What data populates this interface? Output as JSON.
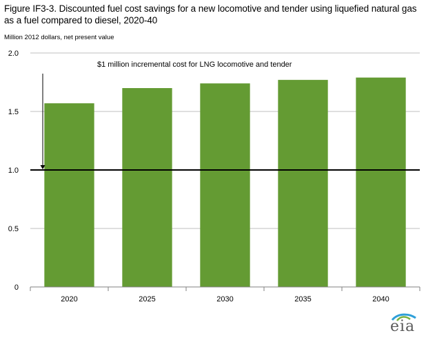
{
  "title": "Figure IF3-3. Discounted fuel cost savings for a  new locomotive and tender using liquefied natural gas as a fuel compared to diesel, 2020-40",
  "subtitle": "Million 2012 dollars,  net present value",
  "logo_text": "eia",
  "colors": {
    "bar": "#649B33",
    "grid": "#BFBFBF",
    "reference_line": "#000000",
    "logo_swoosh": "#2E9FD8",
    "logo_leaf": "#7BB241"
  },
  "chart_data": {
    "type": "bar",
    "categories": [
      "2020",
      "2025",
      "2030",
      "2035",
      "2040"
    ],
    "values": [
      1.57,
      1.7,
      1.74,
      1.77,
      1.79
    ],
    "ylim": [
      0,
      2.0
    ],
    "yticks": [
      0,
      0.5,
      1.0,
      1.5,
      2.0
    ],
    "ytick_labels": [
      "0",
      "0.5",
      "1.0",
      "1.5",
      "2.0"
    ],
    "grid": true,
    "reference_line": {
      "value": 1.0
    },
    "annotation": {
      "text": "$1 million incremental cost for LNG locomotive and tender"
    }
  }
}
